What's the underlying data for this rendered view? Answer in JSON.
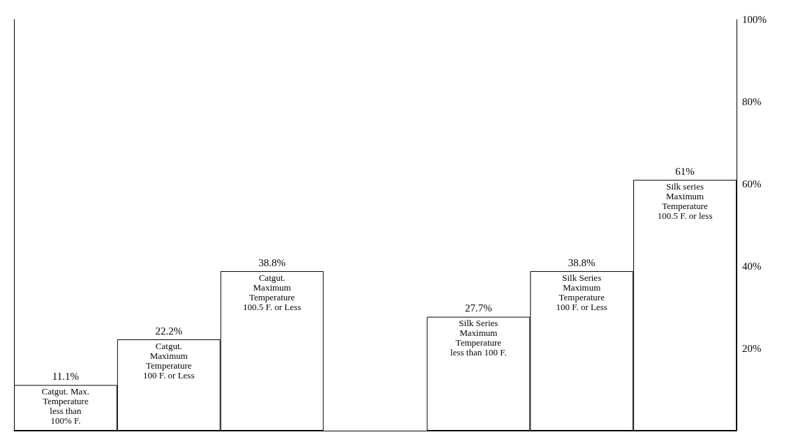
{
  "chart_data": {
    "type": "bar",
    "categories": [
      "Catgut. Max.\nTemperature\nless than\n100% F.",
      "Catgut.\nMaximum\nTemperature\n100 F. or Less",
      "Catgut.\nMaximum\nTemperature\n100.5 F. or Less",
      null,
      "Silk Series\nMaximum\nTemperature\nless than 100 F.",
      "Silk Series\nMaximum\nTemperature\n100 F. or Less",
      "Silk series\nMaximum\nTemperature\n100.5 F. or less"
    ],
    "values": [
      11.1,
      22.2,
      38.8,
      null,
      27.7,
      38.8,
      61
    ],
    "value_labels": [
      "11.1%",
      "22.2%",
      "38.8%",
      null,
      "27.7%",
      "38.8%",
      "61%"
    ],
    "color": "#ffffff",
    "ylim": [
      0,
      100
    ],
    "yticks": [
      {
        "value": 20,
        "label": "20%"
      },
      {
        "value": 40,
        "label": "40%"
      },
      {
        "value": 60,
        "label": "60%"
      },
      {
        "value": 80,
        "label": "80%"
      },
      {
        "value": 100,
        "label": "100%"
      }
    ],
    "grid": false
  }
}
